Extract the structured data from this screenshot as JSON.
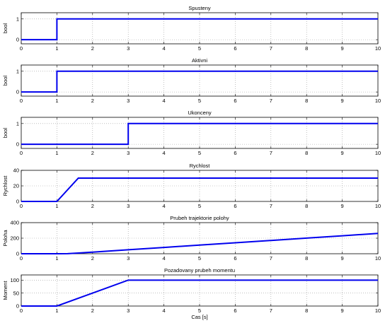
{
  "figure": {
    "xlabel": "Cas [s]",
    "line_color": "#0000ee"
  },
  "chart_data": [
    {
      "type": "line",
      "title": "Spusteny",
      "ylabel": "bool",
      "xlim": [
        0,
        10
      ],
      "ylim": [
        -0.2,
        1.3
      ],
      "xticks": [
        0,
        1,
        2,
        3,
        4,
        5,
        6,
        7,
        8,
        9,
        10
      ],
      "yticks": [
        0,
        1
      ],
      "grid": true,
      "series": [
        {
          "x": [
            0,
            1,
            1,
            10
          ],
          "y": [
            0,
            0,
            1,
            1
          ]
        }
      ]
    },
    {
      "type": "line",
      "title": "Aktivni",
      "ylabel": "bool",
      "xlim": [
        0,
        10
      ],
      "ylim": [
        -0.2,
        1.3
      ],
      "xticks": [
        0,
        1,
        2,
        3,
        4,
        5,
        6,
        7,
        8,
        9,
        10
      ],
      "yticks": [
        0,
        1
      ],
      "grid": true,
      "series": [
        {
          "x": [
            0,
            1,
            1,
            10
          ],
          "y": [
            0,
            0,
            1,
            1
          ]
        }
      ]
    },
    {
      "type": "line",
      "title": "Ukonceny",
      "ylabel": "bool",
      "xlim": [
        0,
        10
      ],
      "ylim": [
        -0.2,
        1.3
      ],
      "xticks": [
        0,
        1,
        2,
        3,
        4,
        5,
        6,
        7,
        8,
        9,
        10
      ],
      "yticks": [
        0,
        1
      ],
      "grid": true,
      "series": [
        {
          "x": [
            0,
            3,
            3,
            10
          ],
          "y": [
            0,
            0,
            1,
            1
          ]
        }
      ]
    },
    {
      "type": "line",
      "title": "Rychlost",
      "ylabel": "Rychlost",
      "xlim": [
        0,
        10
      ],
      "ylim": [
        0,
        40
      ],
      "xticks": [
        0,
        1,
        2,
        3,
        4,
        5,
        6,
        7,
        8,
        9,
        10
      ],
      "yticks": [
        0,
        20,
        40
      ],
      "grid": true,
      "series": [
        {
          "x": [
            0,
            1,
            1.6,
            10
          ],
          "y": [
            0,
            0,
            30,
            30
          ]
        }
      ]
    },
    {
      "type": "line",
      "title": "Prubeh trajektorie polohy",
      "ylabel": "Poloha",
      "xlim": [
        0,
        10
      ],
      "ylim": [
        0,
        400
      ],
      "xticks": [
        0,
        1,
        2,
        3,
        4,
        5,
        6,
        7,
        8,
        9,
        10
      ],
      "yticks": [
        0,
        200,
        400
      ],
      "grid": true,
      "series": [
        {
          "x": [
            0,
            1,
            1.3,
            1.6,
            2,
            3,
            4,
            5,
            6,
            7,
            8,
            9,
            10
          ],
          "y": [
            0,
            0,
            1.5,
            9,
            21,
            51,
            81,
            111,
            141,
            171,
            201,
            231,
            261
          ]
        }
      ]
    },
    {
      "type": "line",
      "title": "Pozadovany prubeh momentu",
      "ylabel": "Moment",
      "xlim": [
        0,
        10
      ],
      "ylim": [
        0,
        120
      ],
      "xticks": [
        0,
        1,
        2,
        3,
        4,
        5,
        6,
        7,
        8,
        9,
        10
      ],
      "yticks": [
        0,
        50,
        100
      ],
      "grid": true,
      "series": [
        {
          "x": [
            0,
            1,
            3,
            10
          ],
          "y": [
            0,
            0,
            100,
            100
          ]
        }
      ]
    }
  ]
}
